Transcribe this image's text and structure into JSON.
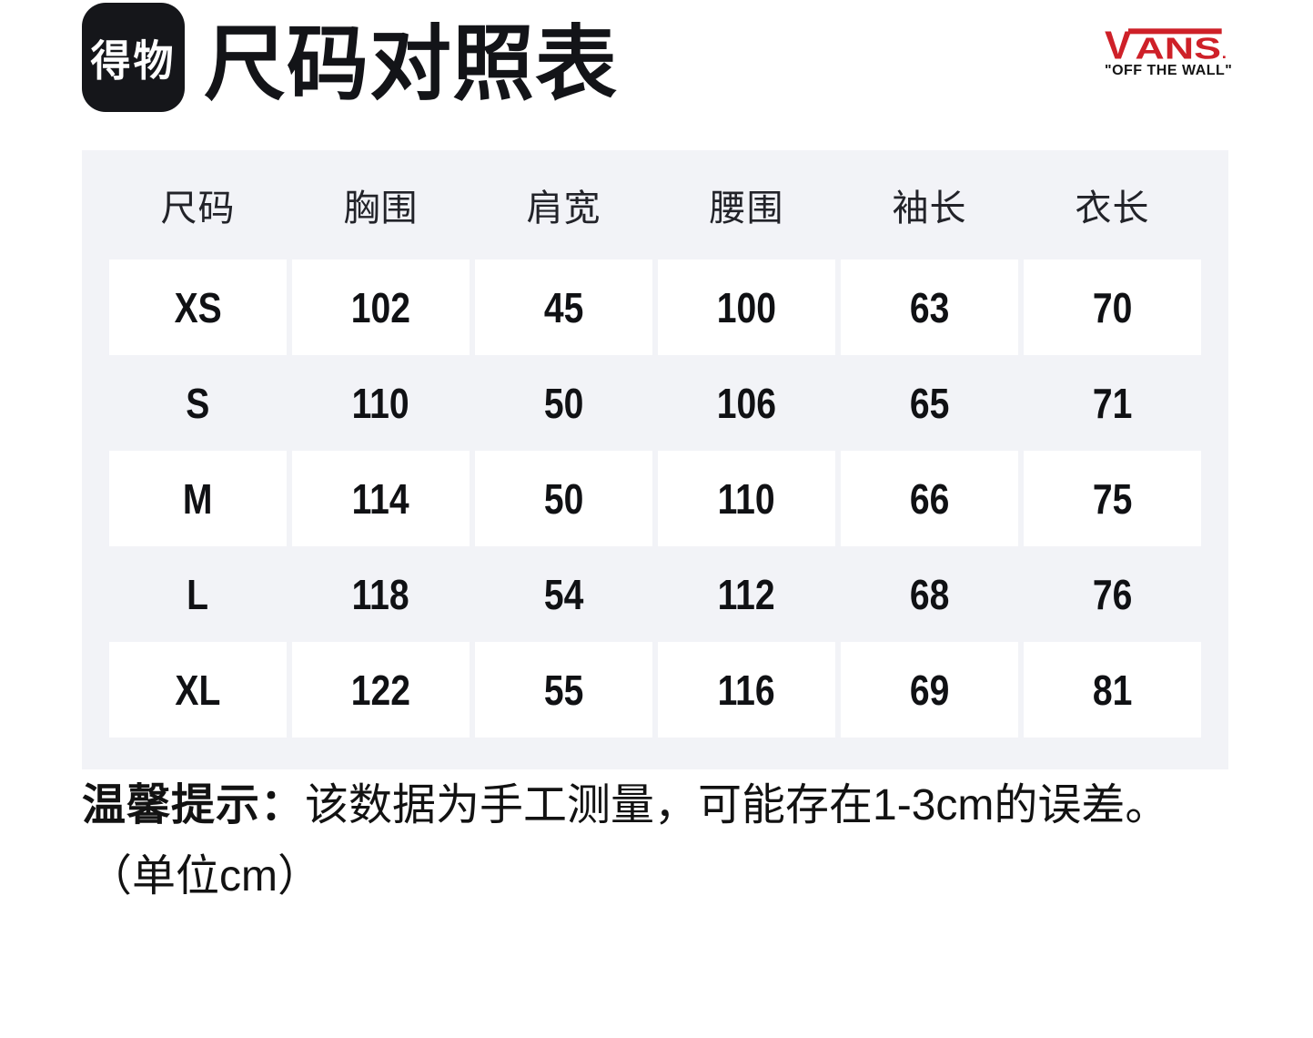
{
  "header": {
    "brand_logo_text": "得物",
    "title": "尺码对照表",
    "vans_v": "V",
    "vans_ans": "ANS",
    "vans_tagline": "\"OFF THE WALL\""
  },
  "chart_data": {
    "type": "table",
    "title": "尺码对照表",
    "columns": [
      "尺码",
      "胸围",
      "肩宽",
      "腰围",
      "袖长",
      "衣长"
    ],
    "rows": [
      [
        "XS",
        "102",
        "45",
        "100",
        "63",
        "70"
      ],
      [
        "S",
        "110",
        "50",
        "106",
        "65",
        "71"
      ],
      [
        "M",
        "114",
        "50",
        "110",
        "66",
        "75"
      ],
      [
        "L",
        "118",
        "54",
        "112",
        "68",
        "76"
      ],
      [
        "XL",
        "122",
        "55",
        "116",
        "69",
        "81"
      ]
    ],
    "unit": "cm",
    "layout": "header row on gray; data rows alternate white-cell / gray, starting white"
  },
  "note": {
    "prefix": "温馨提示：",
    "text": "该数据为手工测量，可能存在1-3cm的误差。",
    "unit_line": "（单位cm）"
  },
  "colors": {
    "vans_red": "#CE2028",
    "table_bg": "#F2F3F7",
    "logo_black": "#15161A",
    "ink": "#131418"
  }
}
